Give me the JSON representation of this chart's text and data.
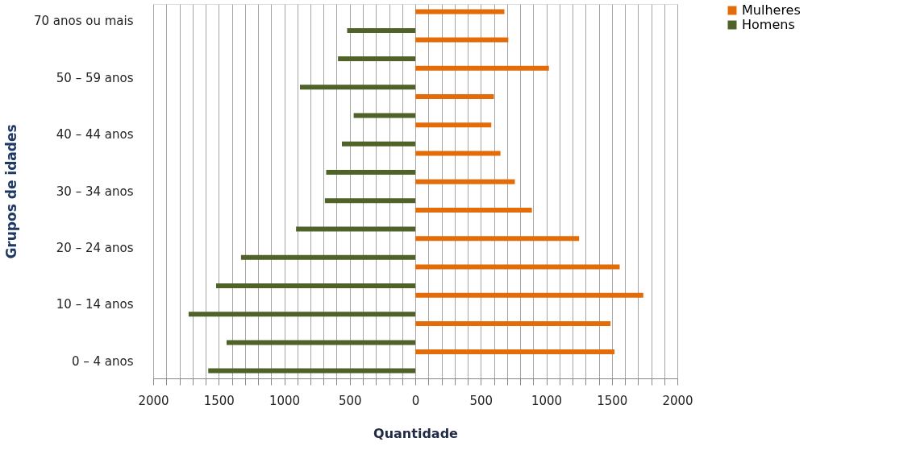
{
  "chart_data": {
    "type": "bar",
    "orientation": "horizontal",
    "xlabel": "Quantidade",
    "ylabel": "Grupos de  idades",
    "categories": [
      "70 anos ou mais",
      null,
      "50 – 59 anos",
      null,
      "40 – 44 anos",
      null,
      "30 – 34 anos",
      null,
      "20 – 24 anos",
      null,
      "10 – 14 anos",
      null,
      "0 – 4 anos"
    ],
    "series": [
      {
        "name": "Mulheres",
        "color": "#e36c09",
        "values": [
          680,
          710,
          1020,
          600,
          580,
          650,
          760,
          890,
          1250,
          1560,
          1740,
          1490,
          1520
        ]
      },
      {
        "name": "Homens",
        "color": "#4f6228",
        "values": [
          -520,
          -590,
          -880,
          -470,
          -560,
          -680,
          -690,
          -910,
          -1330,
          -1520,
          -1730,
          -1440,
          -1580
        ]
      }
    ],
    "xlim": [
      -2000,
      2000
    ],
    "xticks": [
      {
        "value": -2000,
        "label": "2000"
      },
      {
        "value": -1900,
        "label": null
      },
      {
        "value": -1800,
        "label": null
      },
      {
        "value": -1700,
        "label": null
      },
      {
        "value": -1600,
        "label": null
      },
      {
        "value": -1500,
        "label": "1500"
      },
      {
        "value": -1400,
        "label": null
      },
      {
        "value": -1300,
        "label": null
      },
      {
        "value": -1200,
        "label": null
      },
      {
        "value": -1100,
        "label": null
      },
      {
        "value": -1000,
        "label": "1000"
      },
      {
        "value": -900,
        "label": null
      },
      {
        "value": -800,
        "label": null
      },
      {
        "value": -700,
        "label": null
      },
      {
        "value": -600,
        "label": null
      },
      {
        "value": -500,
        "label": "500"
      },
      {
        "value": -400,
        "label": null
      },
      {
        "value": -300,
        "label": null
      },
      {
        "value": -200,
        "label": null
      },
      {
        "value": -100,
        "label": null
      },
      0,
      {
        "value": 100,
        "label": null
      },
      {
        "value": 200,
        "label": null
      },
      {
        "value": 300,
        "label": null
      },
      {
        "value": 400,
        "label": null
      },
      500,
      {
        "value": 600,
        "label": null
      },
      {
        "value": 700,
        "label": null
      },
      {
        "value": 800,
        "label": null
      },
      {
        "value": 900,
        "label": null
      },
      1000,
      {
        "value": 1100,
        "label": null
      },
      {
        "value": 1200,
        "label": null
      },
      {
        "value": 1300,
        "label": null
      },
      {
        "value": 1400,
        "label": null
      },
      1500,
      {
        "value": 1600,
        "label": null
      },
      {
        "value": 1700,
        "label": null
      },
      {
        "value": 1800,
        "label": null
      },
      {
        "value": 1900,
        "label": null
      },
      2000
    ],
    "grid": "x",
    "legend": "right"
  }
}
